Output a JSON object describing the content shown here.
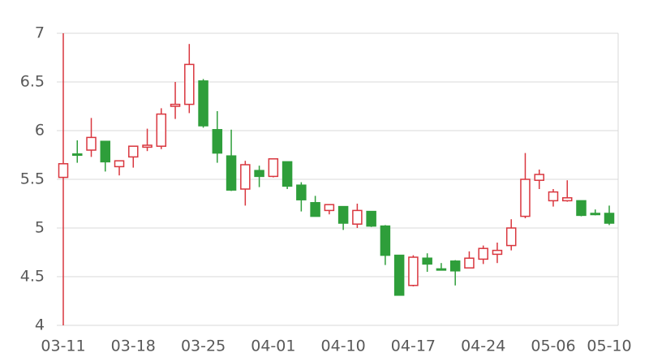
{
  "chart_data": {
    "type": "candlestick",
    "categories": [
      "03-11",
      null,
      null,
      null,
      null,
      "03-18",
      null,
      null,
      null,
      null,
      "03-25",
      null,
      null,
      null,
      null,
      "04-01",
      null,
      null,
      null,
      null,
      "04-10",
      null,
      null,
      null,
      null,
      "04-17",
      null,
      null,
      null,
      null,
      "04-24",
      null,
      null,
      null,
      null,
      "05-06",
      null,
      null,
      null,
      "05-10"
    ],
    "open": [
      5.52,
      5.76,
      5.8,
      5.89,
      5.63,
      5.73,
      5.83,
      5.84,
      6.25,
      6.27,
      6.51,
      6.01,
      5.74,
      5.4,
      5.59,
      5.53,
      5.68,
      5.44,
      5.26,
      5.18,
      5.22,
      5.04,
      5.17,
      5.02,
      4.72,
      4.41,
      4.69,
      4.58,
      4.66,
      4.59,
      4.68,
      4.73,
      4.82,
      5.12,
      5.49,
      5.28,
      5.28,
      5.28,
      5.15,
      5.15
    ],
    "high": [
      7.0,
      5.9,
      6.13,
      5.89,
      5.69,
      5.84,
      6.02,
      6.23,
      6.5,
      6.89,
      6.53,
      6.2,
      6.01,
      5.69,
      5.64,
      5.71,
      5.68,
      5.47,
      5.33,
      5.24,
      5.22,
      5.25,
      5.17,
      5.03,
      4.72,
      4.72,
      4.74,
      4.64,
      4.67,
      4.76,
      4.82,
      4.85,
      5.09,
      5.77,
      5.6,
      5.4,
      5.49,
      5.28,
      5.19,
      5.23
    ],
    "low": [
      4.0,
      5.67,
      5.73,
      5.58,
      5.54,
      5.62,
      5.79,
      5.81,
      6.12,
      6.18,
      6.03,
      5.67,
      5.38,
      5.23,
      5.42,
      5.52,
      5.4,
      5.17,
      5.12,
      5.14,
      4.98,
      5.0,
      5.01,
      4.62,
      4.31,
      4.4,
      4.55,
      4.57,
      4.41,
      4.59,
      4.63,
      4.64,
      4.77,
      5.1,
      5.4,
      5.22,
      5.27,
      5.12,
      5.13,
      5.03
    ],
    "close": [
      5.66,
      5.75,
      5.93,
      5.68,
      5.69,
      5.84,
      5.85,
      6.17,
      6.27,
      6.68,
      6.05,
      5.77,
      5.39,
      5.65,
      5.53,
      5.71,
      5.43,
      5.29,
      5.12,
      5.24,
      5.05,
      5.18,
      5.02,
      4.72,
      4.31,
      4.7,
      4.63,
      4.57,
      4.56,
      4.69,
      4.79,
      4.77,
      5.0,
      5.5,
      5.55,
      5.37,
      5.31,
      5.13,
      5.14,
      5.05
    ],
    "up_color": "#d9363e",
    "down_color": "#2e9e3a",
    "ylim": [
      4,
      7
    ],
    "yticks": [
      4,
      4.5,
      5,
      5.5,
      6,
      6.5,
      7
    ],
    "grid": true
  }
}
